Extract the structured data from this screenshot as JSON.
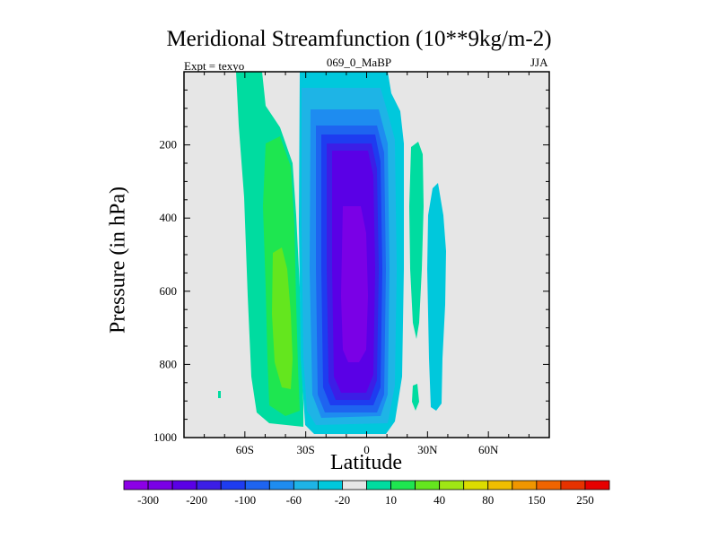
{
  "header": {
    "title": "Meridional Streamfunction (10**9kg/m-2)",
    "left_label": "Expt = texyo",
    "center_label": "069_0_MaBP",
    "right_label": "JJA"
  },
  "colors": {
    "background_zero": "#e6e6e6",
    "levels": [
      "#8c00e6",
      "#7a00e6",
      "#5a00e6",
      "#3c1ee6",
      "#1e3cf0",
      "#1e64f0",
      "#1e8cf0",
      "#1eb4e6",
      "#00c8dc",
      "#e6e6e6",
      "#00dca0",
      "#1ee650",
      "#64e61e",
      "#a0e614",
      "#dcdc00",
      "#f0be00",
      "#f09600",
      "#f06400",
      "#e63200",
      "#e60000"
    ]
  },
  "chart_data": {
    "type": "heatmap",
    "subtype": "filled-contour",
    "title": "Meridional Streamfunction (10**9kg/m-2)",
    "xlabel": "Latitude",
    "ylabel": "Pressure (in hPa)",
    "x_ticks": [
      "60S",
      "30S",
      "0",
      "30N",
      "60N"
    ],
    "x_tick_values": [
      -60,
      -30,
      0,
      30,
      60
    ],
    "xlim": [
      -90,
      90
    ],
    "y_ticks": [
      "200",
      "400",
      "600",
      "800",
      "1000"
    ],
    "y_tick_values": [
      200,
      400,
      600,
      800,
      1000
    ],
    "ylim": [
      1000,
      0
    ],
    "y_inverted": true,
    "colorbar_labels": [
      "-300",
      "-200",
      "-100",
      "-60",
      "-20",
      "10",
      "40",
      "80",
      "150",
      "250"
    ],
    "colorbar_levels": [
      -300,
      -250,
      -200,
      -150,
      -100,
      -80,
      -60,
      -40,
      -20,
      0,
      10,
      20,
      40,
      60,
      80,
      100,
      150,
      200,
      250
    ],
    "features": [
      {
        "name": "southern-hemisphere-positive-cell",
        "lat_range": [
          -60,
          -30
        ],
        "pressure_range": [
          0,
          960
        ],
        "max_level": 80
      },
      {
        "name": "tropical-negative-cell",
        "lat_range": [
          -30,
          10
        ],
        "pressure_range": [
          0,
          1000
        ],
        "min_level": -300
      },
      {
        "name": "northern-positive-band",
        "lat_range": [
          20,
          30
        ],
        "pressure_range": [
          180,
          900
        ],
        "max_level": 10
      },
      {
        "name": "northern-negative-band",
        "lat_range": [
          28,
          38
        ],
        "pressure_range": [
          250,
          950
        ],
        "min_level": -20
      }
    ]
  }
}
